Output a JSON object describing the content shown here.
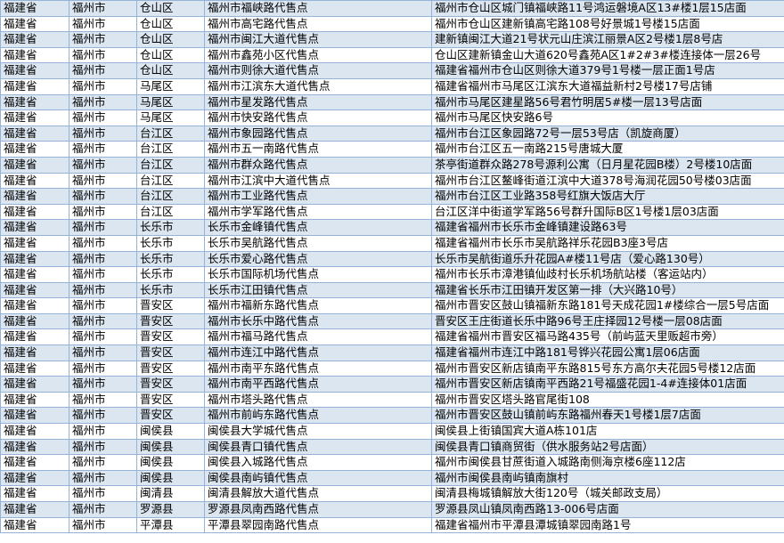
{
  "colors": {
    "stripe": "#dce6f1",
    "grid": "#95b3d7"
  },
  "rows": [
    [
      "福建省",
      "福州市",
      "仓山区",
      "福州市福峡路代售点",
      "福州市仓山区城门镇福峡路11号鸿运磐境A区13#楼1层15店面"
    ],
    [
      "福建省",
      "福州市",
      "仓山区",
      "福州市高宅路代售点",
      "福州市仓山区建新镇高宅路108号好景城1号楼15店面"
    ],
    [
      "福建省",
      "福州市",
      "仓山区",
      "福州市闽江大道代售点",
      "建新镇闽江大道21号状元山庄滨江丽景A区2号楼1层8号店"
    ],
    [
      "福建省",
      "福州市",
      "仓山区",
      "福州市鑫苑小区代售点",
      "仓山区建新镇金山大道620号鑫苑A区1#2#3#楼连接体一层26号"
    ],
    [
      "福建省",
      "福州市",
      "仓山区",
      "福州市则徐大道代售点",
      "福建省福州市仓山区则徐大道379号1号楼一层正面1号店"
    ],
    [
      "福建省",
      "福州市",
      "马尾区",
      "福州市江滨东大道代售点",
      "福建省福州市马尾区江滨东大道福益新村2号楼17号店铺"
    ],
    [
      "福建省",
      "福州市",
      "马尾区",
      "福州市星发路代售点",
      "福州市马尾区建星路56号君竹明居5#楼一层13号店面"
    ],
    [
      "福建省",
      "福州市",
      "马尾区",
      "福州市快安路代售点",
      "福州市马尾区快安路6号"
    ],
    [
      "福建省",
      "福州市",
      "台江区",
      "福州市象园路代售点",
      "福州市台江区象园路72号一层53号店（凯旋商厦）"
    ],
    [
      "福建省",
      "福州市",
      "台江区",
      "福州市五一南路代售点",
      "福州市台江区五一南路215号唐城大厦"
    ],
    [
      "福建省",
      "福州市",
      "台江区",
      "福州市群众路代售点",
      "茶亭街道群众路278号源利公寓（日月星花园B楼）2号楼10店面"
    ],
    [
      "福建省",
      "福州市",
      "台江区",
      "福州市江滨中大道代售点",
      "福州市台江区鳌峰街道江滨中大道378号海润花园50号楼03店面"
    ],
    [
      "福建省",
      "福州市",
      "台江区",
      "福州市工业路代售点",
      "福州市台江区工业路358号红旗大饭店大厅"
    ],
    [
      "福建省",
      "福州市",
      "台江区",
      "福州市学军路代售点",
      "台江区洋中街道学军路56号群升国际B区1号楼1层03店面"
    ],
    [
      "福建省",
      "福州市",
      "长乐市",
      "长乐市金峰镇代售点",
      "福建省福州市长乐市金峰镇建设路63号"
    ],
    [
      "福建省",
      "福州市",
      "长乐市",
      "长乐市吴航路代售点",
      "福建省福州市长乐市吴航路祥乐花园B3座3号店"
    ],
    [
      "福建省",
      "福州市",
      "长乐市",
      "长乐市爱心路代售点",
      "长乐市吴航街道乐升花园A#楼11号店（爱心路130号）"
    ],
    [
      "福建省",
      "福州市",
      "长乐市",
      "长乐市国际机场代售点",
      "福州市长乐市漳港镇仙歧村长乐机场航站楼（客运站内）"
    ],
    [
      "福建省",
      "福州市",
      "长乐市",
      "长乐市江田镇代售点",
      "福建省长乐市江田镇开发区第一排（大兴路10号）"
    ],
    [
      "福建省",
      "福州市",
      "晋安区",
      "福州市福新东路代售点",
      "福州市晋安区鼓山镇福新东路181号天成花园1#楼综合一层5号店面"
    ],
    [
      "福建省",
      "福州市",
      "晋安区",
      "福州市长乐中路代售点",
      "晋安区王庄街道长乐中路96号王庄择园12号楼一层08店面"
    ],
    [
      "福建省",
      "福州市",
      "晋安区",
      "福州市福马路代售点",
      "福建省福州市晋安区福马路435号（前屿蓝天里贩超市旁）"
    ],
    [
      "福建省",
      "福州市",
      "晋安区",
      "福州市连江中路代售点",
      "福建省福州市连江中路181号铧兴花园公寓1层06店面"
    ],
    [
      "福建省",
      "福州市",
      "晋安区",
      "福州市南平东路代售点",
      "福州市晋安区新店镇南平东路815号东方高尔夫花园5号楼12店面"
    ],
    [
      "福建省",
      "福州市",
      "晋安区",
      "福州市南平西路代售点",
      "福州市晋安区新店镇南平西路21号福盛花园1-4#连接体01店面"
    ],
    [
      "福建省",
      "福州市",
      "晋安区",
      "福州市塔头路代售点",
      "福州市晋安区塔头路官尾街108"
    ],
    [
      "福建省",
      "福州市",
      "晋安区",
      "福州市前屿东路代售点",
      "福州市晋安区鼓山镇前屿东路福州春天1号楼1层7店面"
    ],
    [
      "福建省",
      "福州市",
      "闽侯县",
      "闽侯县大学城代售点",
      "闽侯县上街镇国宾大道A栋101店"
    ],
    [
      "福建省",
      "福州市",
      "闽侯县",
      "闽侯县青口镇代售点",
      "闽侯县青口镇商贸街（供水服务站2号店面）"
    ],
    [
      "福建省",
      "福州市",
      "闽侯县",
      "闽侯县入城路代售点",
      "福州市闽侯县甘蔗街道入城路南侧海京楼6座112店"
    ],
    [
      "福建省",
      "福州市",
      "闽侯县",
      "闽侯县南屿镇代售点",
      "福州市闽侯县南屿镇南旗村"
    ],
    [
      "福建省",
      "福州市",
      "闽清县",
      "闽清县解放大道代售点",
      "闽清县梅城镇解放大街120号（城关邮政支局）"
    ],
    [
      "福建省",
      "福州市",
      "罗源县",
      "罗源县凤南西路代售点",
      "罗源县凤山镇凤南西路13-006号店面"
    ],
    [
      "福建省",
      "福州市",
      "平潭县",
      "平潭县翠园南路代售点",
      "福建省福州市平潭县潭城镇翠园南路1号"
    ]
  ]
}
